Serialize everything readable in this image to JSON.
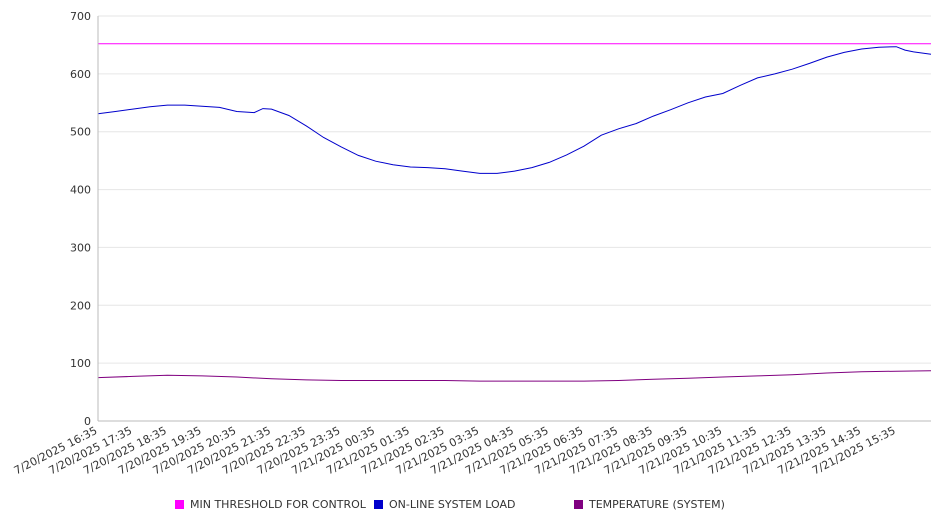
{
  "chart_data": {
    "type": "line",
    "title": "",
    "xlabel": "",
    "ylabel": "",
    "ylim": [
      0,
      700
    ],
    "y_ticks": [
      "0",
      "100",
      "200",
      "300",
      "400",
      "500",
      "600",
      "700"
    ],
    "x_ticks": [
      "7/20/2025 16:35",
      "7/20/2025 17:35",
      "7/20/2025 18:35",
      "7/20/2025 19:35",
      "7/20/2025 20:35",
      "7/20/2025 21:35",
      "7/20/2025 22:35",
      "7/20/2025 23:35",
      "7/21/2025 00:35",
      "7/21/2025 01:35",
      "7/21/2025 02:35",
      "7/21/2025 03:35",
      "7/21/2025 04:35",
      "7/21/2025 05:35",
      "7/21/2025 06:35",
      "7/21/2025 07:35",
      "7/21/2025 08:35",
      "7/21/2025 09:35",
      "7/21/2025 10:35",
      "7/21/2025 11:35",
      "7/21/2025 12:35",
      "7/21/2025 13:35",
      "7/21/2025 14:35",
      "7/21/2025 15:35"
    ],
    "x_time_range": [
      "7/20/2025 16:35",
      "7/21/2025 16:35"
    ],
    "grid": "horizontal",
    "legend_position": "bottom",
    "series": [
      {
        "name": "MIN THRESHOLD FOR CONTROL",
        "color": "#ff00ff",
        "points": [
          [
            "7/20/2025 16:35",
            652
          ],
          [
            "7/21/2025 16:35",
            652
          ]
        ]
      },
      {
        "name": "ON-LINE SYSTEM LOAD",
        "color": "#0000cc",
        "points": [
          [
            "7/20/2025 16:35",
            531
          ],
          [
            "7/20/2025 17:05",
            535
          ],
          [
            "7/20/2025 17:35",
            539
          ],
          [
            "7/20/2025 18:05",
            543
          ],
          [
            "7/20/2025 18:35",
            546
          ],
          [
            "7/20/2025 19:05",
            546
          ],
          [
            "7/20/2025 19:35",
            544
          ],
          [
            "7/20/2025 20:05",
            542
          ],
          [
            "7/20/2025 20:35",
            535
          ],
          [
            "7/20/2025 21:05",
            533
          ],
          [
            "7/20/2025 21:20",
            540
          ],
          [
            "7/20/2025 21:35",
            539
          ],
          [
            "7/20/2025 22:05",
            528
          ],
          [
            "7/20/2025 22:35",
            510
          ],
          [
            "7/20/2025 23:05",
            490
          ],
          [
            "7/20/2025 23:35",
            474
          ],
          [
            "7/21/2025 00:05",
            459
          ],
          [
            "7/21/2025 00:35",
            449
          ],
          [
            "7/21/2025 01:05",
            443
          ],
          [
            "7/21/2025 01:35",
            439
          ],
          [
            "7/21/2025 02:05",
            438
          ],
          [
            "7/21/2025 02:35",
            436
          ],
          [
            "7/21/2025 03:05",
            432
          ],
          [
            "7/21/2025 03:35",
            428
          ],
          [
            "7/21/2025 04:05",
            428
          ],
          [
            "7/21/2025 04:35",
            432
          ],
          [
            "7/21/2025 05:05",
            438
          ],
          [
            "7/21/2025 05:35",
            447
          ],
          [
            "7/21/2025 06:05",
            460
          ],
          [
            "7/21/2025 06:35",
            475
          ],
          [
            "7/21/2025 07:05",
            494
          ],
          [
            "7/21/2025 07:35",
            505
          ],
          [
            "7/21/2025 08:05",
            514
          ],
          [
            "7/21/2025 08:35",
            527
          ],
          [
            "7/21/2025 09:05",
            538
          ],
          [
            "7/21/2025 09:35",
            550
          ],
          [
            "7/21/2025 10:05",
            560
          ],
          [
            "7/21/2025 10:35",
            566
          ],
          [
            "7/21/2025 11:05",
            580
          ],
          [
            "7/21/2025 11:35",
            593
          ],
          [
            "7/21/2025 12:05",
            600
          ],
          [
            "7/21/2025 12:35",
            608
          ],
          [
            "7/21/2025 13:05",
            618
          ],
          [
            "7/21/2025 13:35",
            629
          ],
          [
            "7/21/2025 14:05",
            637
          ],
          [
            "7/21/2025 14:35",
            643
          ],
          [
            "7/21/2025 15:05",
            646
          ],
          [
            "7/21/2025 15:35",
            647
          ],
          [
            "7/21/2025 15:50",
            641
          ],
          [
            "7/21/2025 16:05",
            638
          ],
          [
            "7/21/2025 16:35",
            634
          ]
        ]
      },
      {
        "name": "TEMPERATURE (SYSTEM)",
        "color": "#800080",
        "points": [
          [
            "7/20/2025 16:35",
            75
          ],
          [
            "7/20/2025 17:35",
            77
          ],
          [
            "7/20/2025 18:35",
            79
          ],
          [
            "7/20/2025 19:35",
            78
          ],
          [
            "7/20/2025 20:35",
            76
          ],
          [
            "7/20/2025 21:35",
            73
          ],
          [
            "7/20/2025 22:35",
            71
          ],
          [
            "7/20/2025 23:35",
            70
          ],
          [
            "7/21/2025 00:35",
            70
          ],
          [
            "7/21/2025 01:35",
            70
          ],
          [
            "7/21/2025 02:35",
            70
          ],
          [
            "7/21/2025 03:35",
            69
          ],
          [
            "7/21/2025 04:35",
            69
          ],
          [
            "7/21/2025 05:35",
            69
          ],
          [
            "7/21/2025 06:35",
            69
          ],
          [
            "7/21/2025 07:35",
            70
          ],
          [
            "7/21/2025 08:35",
            72
          ],
          [
            "7/21/2025 09:35",
            74
          ],
          [
            "7/21/2025 10:35",
            76
          ],
          [
            "7/21/2025 11:35",
            78
          ],
          [
            "7/21/2025 12:35",
            80
          ],
          [
            "7/21/2025 13:35",
            83
          ],
          [
            "7/21/2025 14:35",
            85
          ],
          [
            "7/21/2025 15:35",
            86
          ],
          [
            "7/21/2025 16:35",
            87
          ]
        ]
      }
    ]
  }
}
